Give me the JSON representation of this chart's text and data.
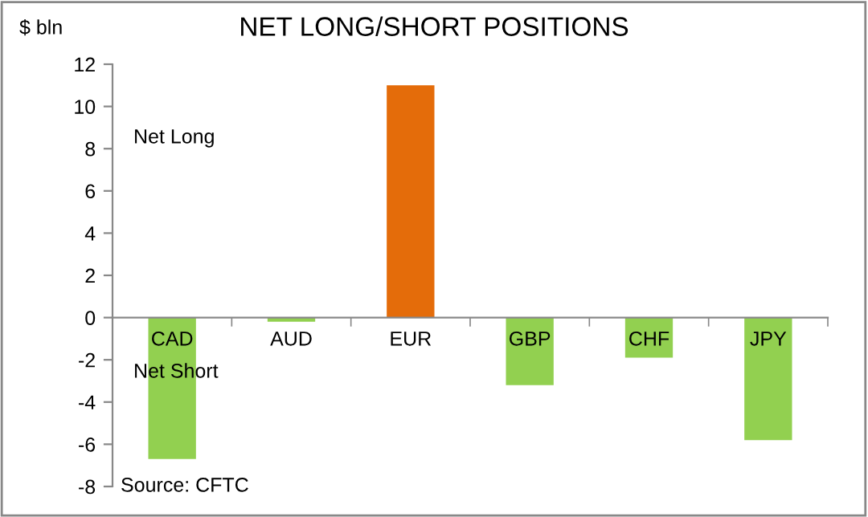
{
  "chart_data": {
    "type": "bar",
    "title": "NET LONG/SHORT POSITIONS",
    "ylabel": "$ bln",
    "categories": [
      "CAD",
      "AUD",
      "EUR",
      "GBP",
      "CHF",
      "JPY"
    ],
    "values": [
      -6.7,
      -0.2,
      11.0,
      -3.2,
      -1.9,
      -5.8
    ],
    "colors": [
      "#92d050",
      "#92d050",
      "#e46c0a",
      "#92d050",
      "#92d050",
      "#92d050"
    ],
    "ylim": [
      -8,
      12
    ],
    "yticks": [
      -8,
      -6,
      -4,
      -2,
      0,
      2,
      4,
      6,
      8,
      10,
      12
    ],
    "annotations": [
      "Net Long",
      "Net Short",
      "Source: CFTC"
    ]
  }
}
